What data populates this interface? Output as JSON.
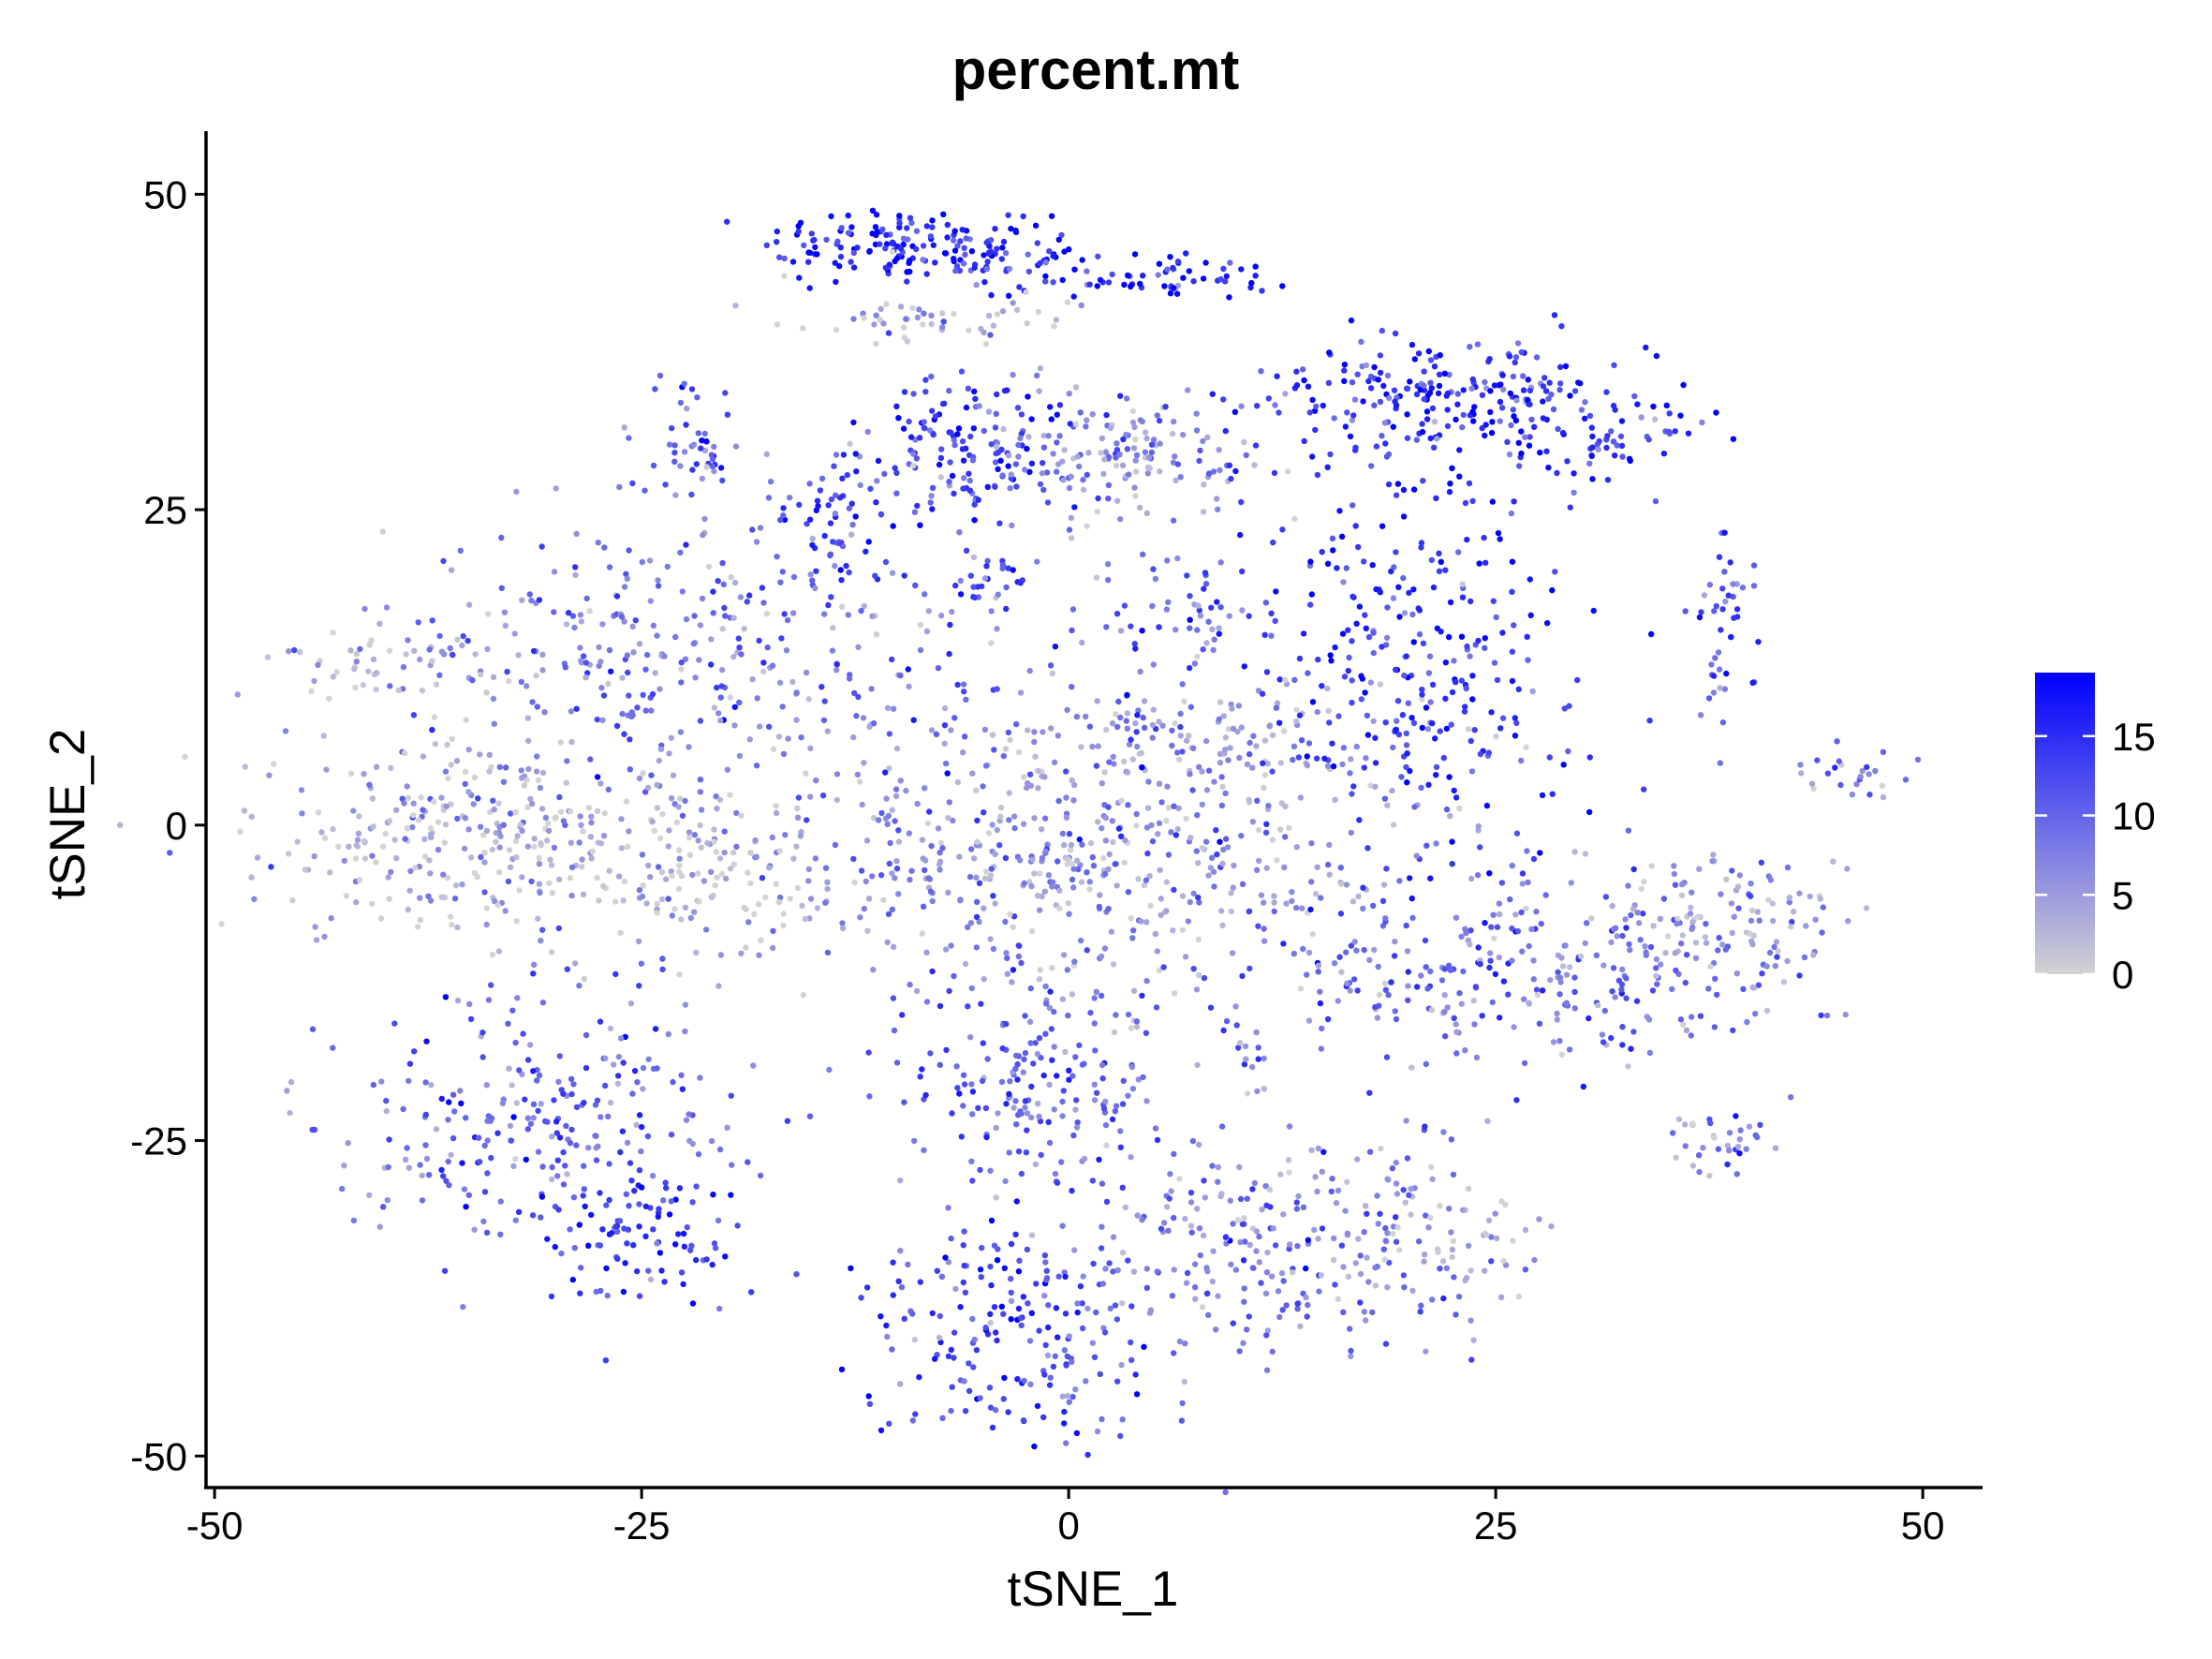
{
  "chart_data": {
    "type": "scatter",
    "title": "percent.mt",
    "xlabel": "tSNE_1",
    "ylabel": "tSNE_2",
    "xlim": [
      -50.5,
      53.5
    ],
    "ylim": [
      -52.5,
      55
    ],
    "x_ticks": [
      -50,
      -25,
      0,
      25,
      50
    ],
    "y_ticks": [
      -50,
      -25,
      0,
      25,
      50
    ],
    "x_tick_labels": [
      "-50",
      "-25",
      "0",
      "25",
      "50"
    ],
    "y_tick_labels": [
      "-50",
      "-25",
      "0",
      "25",
      "50"
    ],
    "grid": false,
    "legend_position": "right",
    "color_scale": {
      "min": 0,
      "max": 19,
      "low_color": "#d3d3d3",
      "high_color": "#0000ff",
      "breaks": [
        0,
        5,
        10,
        15
      ],
      "break_labels": [
        "0",
        "5",
        "10",
        "15"
      ]
    },
    "clusters": [
      {
        "x": -11,
        "y": 46,
        "sx": 3.5,
        "sy": 1.6,
        "mt": 16,
        "n": 120
      },
      {
        "x": -4,
        "y": 45,
        "sx": 2.2,
        "sy": 1.4,
        "mt": 15,
        "n": 70
      },
      {
        "x": 6,
        "y": 43.5,
        "sx": 3.5,
        "sy": 0.9,
        "mt": 15,
        "n": 60
      },
      {
        "x": -8,
        "y": 40,
        "sx": 4,
        "sy": 0.8,
        "mt": 2,
        "n": 50
      },
      {
        "x": -6,
        "y": 30,
        "sx": 3,
        "sy": 3,
        "mt": 14,
        "n": 140
      },
      {
        "x": 3,
        "y": 29,
        "sx": 4.5,
        "sy": 3,
        "mt": 6,
        "n": 160
      },
      {
        "x": 22,
        "y": 34,
        "sx": 6,
        "sy": 2.5,
        "mt": 15,
        "n": 220
      },
      {
        "x": 32,
        "y": 31,
        "sx": 3,
        "sy": 2,
        "mt": 15,
        "n": 60
      },
      {
        "x": -22,
        "y": 30,
        "sx": 1.8,
        "sy": 2.5,
        "mt": 10,
        "n": 50
      },
      {
        "x": -14,
        "y": 24,
        "sx": 2,
        "sy": 3,
        "mt": 13,
        "n": 70
      },
      {
        "x": -40,
        "y": 13,
        "sx": 4,
        "sy": 1.5,
        "mt": 3,
        "n": 60
      },
      {
        "x": -22,
        "y": 14,
        "sx": 9,
        "sy": 5,
        "mt": 8,
        "n": 320
      },
      {
        "x": -5,
        "y": 19,
        "sx": 2,
        "sy": 1.5,
        "mt": 12,
        "n": 30
      },
      {
        "x": 7,
        "y": 17,
        "sx": 3,
        "sy": 2.5,
        "mt": 10,
        "n": 60
      },
      {
        "x": 8,
        "y": 7,
        "sx": 8,
        "sy": 2.5,
        "mt": 5,
        "n": 150
      },
      {
        "x": 0,
        "y": -3,
        "sx": 10,
        "sy": 5,
        "mt": 6,
        "n": 520
      },
      {
        "x": 21,
        "y": 13,
        "sx": 5,
        "sy": 9,
        "mt": 14,
        "n": 320
      },
      {
        "x": 38.5,
        "y": 15,
        "sx": 0.9,
        "sy": 4,
        "mt": 11,
        "n": 45
      },
      {
        "x": 46,
        "y": 4.5,
        "sx": 2,
        "sy": 1.2,
        "mt": 7,
        "n": 25
      },
      {
        "x": -34,
        "y": -1,
        "sx": 7,
        "sy": 4,
        "mt": 3,
        "n": 340
      },
      {
        "x": -20,
        "y": -4,
        "sx": 3,
        "sy": 4,
        "mt": 2,
        "n": 80
      },
      {
        "x": 27,
        "y": -12,
        "sx": 8,
        "sy": 3.5,
        "mt": 9,
        "n": 280
      },
      {
        "x": 38,
        "y": -7,
        "sx": 4,
        "sy": 2.5,
        "mt": 5,
        "n": 100
      },
      {
        "x": -31,
        "y": -23,
        "sx": 6,
        "sy": 5,
        "mt": 10,
        "n": 260
      },
      {
        "x": -25,
        "y": -33,
        "sx": 3,
        "sy": 3,
        "mt": 14,
        "n": 90
      },
      {
        "x": -2,
        "y": -20,
        "sx": 3.5,
        "sy": 5,
        "mt": 10,
        "n": 190
      },
      {
        "x": 12,
        "y": -33,
        "sx": 6,
        "sy": 5,
        "mt": 8,
        "n": 260
      },
      {
        "x": 22,
        "y": -33,
        "sx": 3,
        "sy": 3,
        "mt": 4,
        "n": 60
      },
      {
        "x": -3,
        "y": -40,
        "sx": 4.5,
        "sy": 4.5,
        "mt": 12,
        "n": 200
      },
      {
        "x": 37.5,
        "y": -25,
        "sx": 1.8,
        "sy": 1.2,
        "mt": 6,
        "n": 35
      },
      {
        "x": 10.5,
        "y": -18,
        "sx": 0.7,
        "sy": 2,
        "mt": 7,
        "n": 15
      }
    ]
  }
}
